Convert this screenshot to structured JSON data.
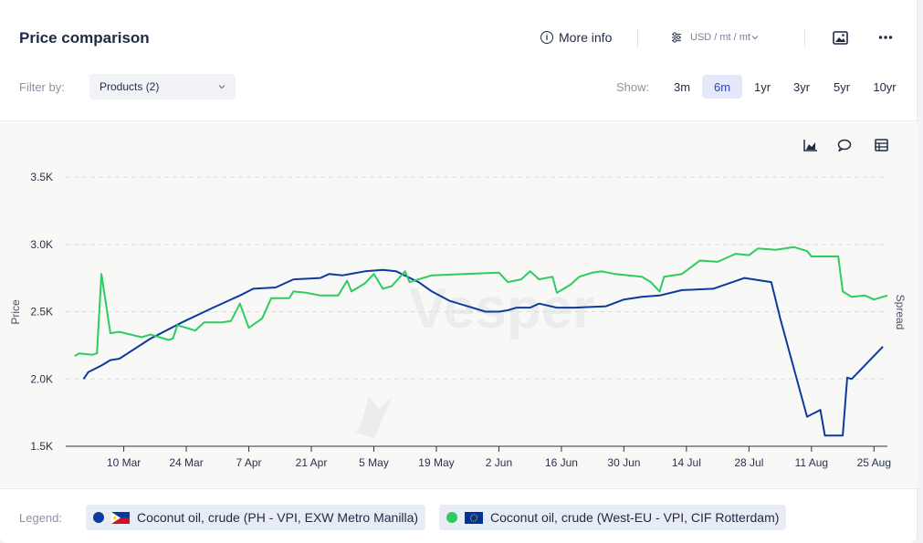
{
  "header": {
    "title": "Price comparison",
    "more_info": "More info",
    "unit": "USD / mt / mt"
  },
  "filter": {
    "label": "Filter by:",
    "selected": "Products (2)"
  },
  "show": {
    "label": "Show:",
    "ranges": [
      "3m",
      "6m",
      "1yr",
      "3yr",
      "5yr",
      "10yr"
    ],
    "active": "6m"
  },
  "legend": {
    "label": "Legend:",
    "items": [
      {
        "name": "Coconut oil, crude (PH - VPI, EXW Metro Manilla)",
        "color": "#0d3a9c",
        "flag": "PH"
      },
      {
        "name": "Coconut oil, crude (West-EU - VPI, CIF Rotterdam)",
        "color": "#2ecc5f",
        "flag": "EU"
      }
    ]
  },
  "colors": {
    "series_ph": "#0d3a9c",
    "series_eu": "#2ecc5f",
    "accent": "#2f44c7"
  },
  "chart_data": {
    "type": "line",
    "ylabel": "Price",
    "y2label": "Spread",
    "ylim": [
      1500,
      3500
    ],
    "yticks": [
      "1.5K",
      "2.0K",
      "2.5K",
      "3.0K",
      "3.5K"
    ],
    "ytick_values": [
      1500,
      2000,
      2500,
      3000,
      3500
    ],
    "xticks": [
      "10 Mar",
      "24 Mar",
      "7 Apr",
      "21 Apr",
      "5 May",
      "19 May",
      "2 Jun",
      "16 Jun",
      "30 Jun",
      "14 Jul",
      "28 Jul",
      "11 Aug",
      "25 Aug"
    ],
    "xlim": [
      "2024-02-26",
      "2024-08-28"
    ],
    "grid": true,
    "watermark": "Vesper",
    "series": [
      {
        "name": "Coconut oil, crude (PH - VPI, EXW Metro Manilla)",
        "color": "#0d3a9c",
        "points": [
          [
            "2024-03-01",
            2000
          ],
          [
            "2024-03-02",
            2050
          ],
          [
            "2024-03-05",
            2100
          ],
          [
            "2024-03-07",
            2140
          ],
          [
            "2024-03-09",
            2150
          ],
          [
            "2024-03-16",
            2300
          ],
          [
            "2024-03-23",
            2420
          ],
          [
            "2024-03-30",
            2530
          ],
          [
            "2024-04-05",
            2620
          ],
          [
            "2024-04-08",
            2670
          ],
          [
            "2024-04-13",
            2680
          ],
          [
            "2024-04-17",
            2740
          ],
          [
            "2024-04-23",
            2750
          ],
          [
            "2024-04-25",
            2780
          ],
          [
            "2024-04-28",
            2770
          ],
          [
            "2024-05-03",
            2800
          ],
          [
            "2024-05-07",
            2810
          ],
          [
            "2024-05-10",
            2800
          ],
          [
            "2024-05-15",
            2720
          ],
          [
            "2024-05-18",
            2650
          ],
          [
            "2024-05-22",
            2580
          ],
          [
            "2024-05-26",
            2540
          ],
          [
            "2024-05-30",
            2500
          ],
          [
            "2024-06-02",
            2500
          ],
          [
            "2024-06-04",
            2510
          ],
          [
            "2024-06-06",
            2530
          ],
          [
            "2024-06-09",
            2530
          ],
          [
            "2024-06-11",
            2560
          ],
          [
            "2024-06-15",
            2530
          ],
          [
            "2024-06-19",
            2530
          ],
          [
            "2024-06-26",
            2540
          ],
          [
            "2024-06-30",
            2590
          ],
          [
            "2024-07-04",
            2610
          ],
          [
            "2024-07-08",
            2620
          ],
          [
            "2024-07-13",
            2660
          ],
          [
            "2024-07-20",
            2670
          ],
          [
            "2024-07-27",
            2750
          ],
          [
            "2024-08-02",
            2720
          ],
          [
            "2024-08-04",
            2450
          ],
          [
            "2024-08-10",
            1720
          ],
          [
            "2024-08-13",
            1770
          ],
          [
            "2024-08-14",
            1580
          ],
          [
            "2024-08-18",
            1580
          ],
          [
            "2024-08-19",
            2010
          ],
          [
            "2024-08-20",
            2000
          ],
          [
            "2024-08-27",
            2240
          ]
        ]
      },
      {
        "name": "Coconut oil, crude (West-EU - VPI, CIF Rotterdam)",
        "color": "#2ecc5f",
        "points": [
          [
            "2024-02-28",
            2170
          ],
          [
            "2024-02-29",
            2190
          ],
          [
            "2024-03-03",
            2180
          ],
          [
            "2024-03-04",
            2190
          ],
          [
            "2024-03-05",
            2780
          ],
          [
            "2024-03-07",
            2340
          ],
          [
            "2024-03-09",
            2350
          ],
          [
            "2024-03-14",
            2310
          ],
          [
            "2024-03-16",
            2330
          ],
          [
            "2024-03-20",
            2290
          ],
          [
            "2024-03-21",
            2300
          ],
          [
            "2024-03-22",
            2400
          ],
          [
            "2024-03-26",
            2360
          ],
          [
            "2024-03-28",
            2420
          ],
          [
            "2024-04-01",
            2420
          ],
          [
            "2024-04-03",
            2430
          ],
          [
            "2024-04-05",
            2560
          ],
          [
            "2024-04-07",
            2380
          ],
          [
            "2024-04-10",
            2450
          ],
          [
            "2024-04-12",
            2600
          ],
          [
            "2024-04-16",
            2600
          ],
          [
            "2024-04-17",
            2650
          ],
          [
            "2024-04-20",
            2640
          ],
          [
            "2024-04-23",
            2620
          ],
          [
            "2024-04-27",
            2620
          ],
          [
            "2024-04-29",
            2730
          ],
          [
            "2024-04-30",
            2650
          ],
          [
            "2024-05-03",
            2710
          ],
          [
            "2024-05-05",
            2780
          ],
          [
            "2024-05-07",
            2670
          ],
          [
            "2024-05-09",
            2690
          ],
          [
            "2024-05-12",
            2800
          ],
          [
            "2024-05-13",
            2720
          ],
          [
            "2024-05-18",
            2770
          ],
          [
            "2024-06-02",
            2790
          ],
          [
            "2024-06-04",
            2720
          ],
          [
            "2024-06-07",
            2740
          ],
          [
            "2024-06-09",
            2800
          ],
          [
            "2024-06-11",
            2740
          ],
          [
            "2024-06-14",
            2760
          ],
          [
            "2024-06-15",
            2640
          ],
          [
            "2024-06-18",
            2700
          ],
          [
            "2024-06-20",
            2760
          ],
          [
            "2024-06-23",
            2790
          ],
          [
            "2024-06-25",
            2800
          ],
          [
            "2024-06-28",
            2780
          ],
          [
            "2024-07-04",
            2760
          ],
          [
            "2024-07-06",
            2720
          ],
          [
            "2024-07-08",
            2650
          ],
          [
            "2024-07-09",
            2760
          ],
          [
            "2024-07-13",
            2780
          ],
          [
            "2024-07-17",
            2880
          ],
          [
            "2024-07-21",
            2870
          ],
          [
            "2024-07-25",
            2930
          ],
          [
            "2024-07-28",
            2920
          ],
          [
            "2024-07-30",
            2970
          ],
          [
            "2024-08-03",
            2960
          ],
          [
            "2024-08-07",
            2980
          ],
          [
            "2024-08-10",
            2950
          ],
          [
            "2024-08-11",
            2910
          ],
          [
            "2024-08-17",
            2910
          ],
          [
            "2024-08-18",
            2650
          ],
          [
            "2024-08-20",
            2610
          ],
          [
            "2024-08-23",
            2620
          ],
          [
            "2024-08-25",
            2590
          ],
          [
            "2024-08-28",
            2620
          ]
        ]
      }
    ]
  }
}
